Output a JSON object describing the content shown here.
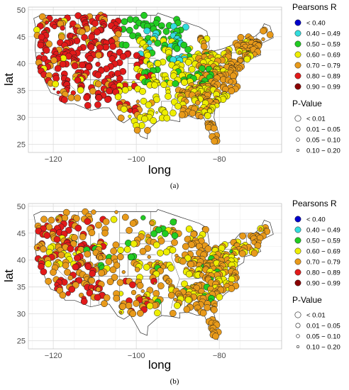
{
  "chart_data": [
    {
      "type": "scatter",
      "panel_label": "(a)",
      "xlabel": "long",
      "ylabel": "lat",
      "xlim": [
        -126,
        -65
      ],
      "ylim": [
        23.5,
        50.5
      ],
      "x_ticks": [
        -120,
        -100,
        -80
      ],
      "x_tick_labels": [
        "−120",
        "−100",
        "−80"
      ],
      "y_ticks": [
        25,
        30,
        35,
        40,
        45,
        50
      ],
      "y_tick_labels": [
        "25",
        "30",
        "35",
        "40",
        "45",
        "50"
      ],
      "grid": true,
      "legend_position": "right",
      "color_legend_title": "Pearsons R",
      "color_legend": [
        {
          "label": "< 0.40",
          "color": "#0000cc"
        },
        {
          "label": "0.40 − 0.49",
          "color": "#33dddd"
        },
        {
          "label": "0.50 − 0.59",
          "color": "#22cc22"
        },
        {
          "label": "0.60 − 0.69",
          "color": "#eeee00"
        },
        {
          "label": "0.70 − 0.79",
          "color": "#e89a1a"
        },
        {
          "label": "0.80 − 0.89",
          "color": "#e21a1a"
        },
        {
          "label": "0.90 − 0.99",
          "color": "#8b0000"
        }
      ],
      "size_legend_title": "P-Value",
      "size_legend": [
        "< 0.01",
        "0.01 − 0.05",
        "0.05 − 0.10",
        "0.10 − 0.20"
      ],
      "regions": [
        {
          "class": 5,
          "lon": [
            -124,
            -104
          ],
          "lat": [
            32,
            49
          ],
          "n": 190
        },
        {
          "class": 4,
          "lon": [
            -124,
            -104
          ],
          "lat": [
            33,
            49
          ],
          "n": 55
        },
        {
          "class": 3,
          "lon": [
            -124,
            -104
          ],
          "lat": [
            33,
            48
          ],
          "n": 14
        },
        {
          "class": 5,
          "lon": [
            -106,
            -96
          ],
          "lat": [
            31,
            42
          ],
          "n": 22
        },
        {
          "class": 2,
          "lon": [
            -104,
            -88
          ],
          "lat": [
            43,
            49
          ],
          "n": 45
        },
        {
          "class": 1,
          "lon": [
            -100,
            -88
          ],
          "lat": [
            40,
            47
          ],
          "n": 22
        },
        {
          "class": 3,
          "lon": [
            -100,
            -90
          ],
          "lat": [
            36,
            45
          ],
          "n": 40
        },
        {
          "class": 2,
          "lon": [
            -98,
            -82
          ],
          "lat": [
            36,
            43
          ],
          "n": 30
        },
        {
          "class": 3,
          "lon": [
            -104,
            -90
          ],
          "lat": [
            28,
            38
          ],
          "n": 45
        },
        {
          "class": 4,
          "lon": [
            -104,
            -96
          ],
          "lat": [
            27,
            33
          ],
          "n": 15
        },
        {
          "class": 3,
          "lon": [
            -90,
            -80
          ],
          "lat": [
            33,
            43
          ],
          "n": 60
        },
        {
          "class": 4,
          "lon": [
            -85,
            -70
          ],
          "lat": [
            35,
            45
          ],
          "n": 110
        },
        {
          "class": 3,
          "lon": [
            -85,
            -72
          ],
          "lat": [
            38,
            45
          ],
          "n": 30
        },
        {
          "class": 4,
          "lon": [
            -90,
            -76
          ],
          "lat": [
            30,
            36
          ],
          "n": 60
        },
        {
          "class": 3,
          "lon": [
            -90,
            -76
          ],
          "lat": [
            30,
            36
          ],
          "n": 25
        },
        {
          "class": 4,
          "lon": [
            -83,
            -80
          ],
          "lat": [
            25,
            30
          ],
          "n": 14
        },
        {
          "class": 4,
          "lon": [
            -73,
            -67
          ],
          "lat": [
            42,
            47
          ],
          "n": 15
        }
      ]
    },
    {
      "type": "scatter",
      "panel_label": "(b)",
      "xlabel": "long",
      "ylabel": "lat",
      "xlim": [
        -126,
        -65
      ],
      "ylim": [
        23.5,
        50.5
      ],
      "x_ticks": [
        -120,
        -100,
        -80
      ],
      "x_tick_labels": [
        "−120",
        "−100",
        "−80"
      ],
      "y_ticks": [
        25,
        30,
        35,
        40,
        45,
        50
      ],
      "y_tick_labels": [
        "25",
        "30",
        "35",
        "40",
        "45",
        "50"
      ],
      "grid": true,
      "legend_position": "right",
      "color_legend_title": "Pearsons R",
      "color_legend": [
        {
          "label": "< 0.40",
          "color": "#0000cc"
        },
        {
          "label": "0.40 − 0.49",
          "color": "#33dddd"
        },
        {
          "label": "0.50 − 0.59",
          "color": "#22cc22"
        },
        {
          "label": "0.60 − 0.69",
          "color": "#eeee00"
        },
        {
          "label": "0.70 − 0.79",
          "color": "#e89a1a"
        },
        {
          "label": "0.80 − 0.89",
          "color": "#e21a1a"
        },
        {
          "label": "0.90 − 0.99",
          "color": "#8b0000"
        }
      ],
      "size_legend_title": "P-Value",
      "size_legend": [
        "< 0.01",
        "0.01 − 0.05",
        "0.05 − 0.10",
        "0.10 − 0.20"
      ],
      "regions": [
        {
          "class": 5,
          "lon": [
            -124,
            -108
          ],
          "lat": [
            32,
            48
          ],
          "n": 80
        },
        {
          "class": 4,
          "lon": [
            -124,
            -104
          ],
          "lat": [
            31,
            49
          ],
          "n": 110
        },
        {
          "class": 3,
          "lon": [
            -122,
            -104
          ],
          "lat": [
            33,
            48
          ],
          "n": 20
        },
        {
          "class": 2,
          "lon": [
            -118,
            -106
          ],
          "lat": [
            34,
            44
          ],
          "n": 6
        },
        {
          "class": 4,
          "lon": [
            -104,
            -88
          ],
          "lat": [
            30,
            48
          ],
          "n": 90
        },
        {
          "class": 3,
          "lon": [
            -104,
            -88
          ],
          "lat": [
            30,
            48
          ],
          "n": 40
        },
        {
          "class": 2,
          "lon": [
            -104,
            -88
          ],
          "lat": [
            32,
            48
          ],
          "n": 14
        },
        {
          "class": 5,
          "lon": [
            -104,
            -95
          ],
          "lat": [
            30,
            38
          ],
          "n": 10
        },
        {
          "class": 4,
          "lon": [
            -88,
            -70
          ],
          "lat": [
            30,
            46
          ],
          "n": 150
        },
        {
          "class": 3,
          "lon": [
            -88,
            -70
          ],
          "lat": [
            32,
            46
          ],
          "n": 70
        },
        {
          "class": 2,
          "lon": [
            -85,
            -75
          ],
          "lat": [
            32,
            42
          ],
          "n": 10
        },
        {
          "class": 4,
          "lon": [
            -83,
            -80
          ],
          "lat": [
            25,
            30
          ],
          "n": 12
        },
        {
          "class": 4,
          "lon": [
            -73,
            -67
          ],
          "lat": [
            42,
            47
          ],
          "n": 12
        }
      ]
    }
  ]
}
